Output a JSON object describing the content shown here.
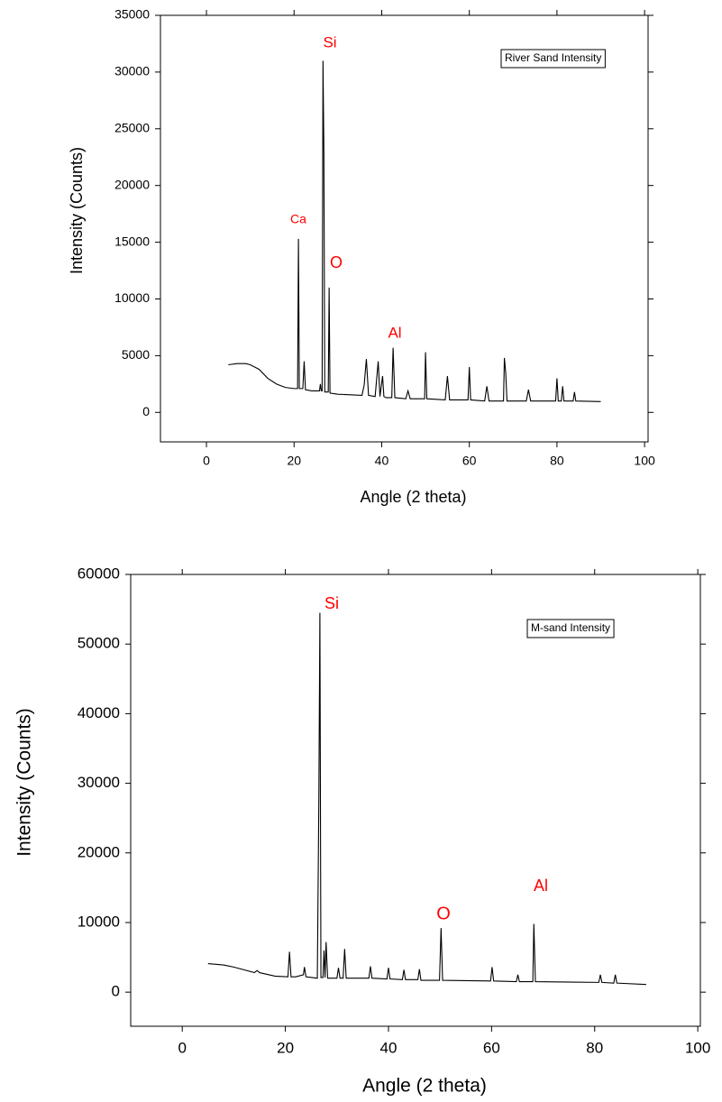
{
  "chart_data": [
    {
      "type": "line",
      "xlabel": "Angle (2 theta)",
      "ylabel": "Intensity (Counts)",
      "xlim": [
        -10.5,
        100.8
      ],
      "ylim": [
        -2600,
        35000
      ],
      "xticks": [
        0,
        20,
        40,
        60,
        80,
        100
      ],
      "yticks": [
        0,
        5000,
        10000,
        15000,
        20000,
        25000,
        30000,
        35000
      ],
      "annotations": [
        "Si",
        "Ca",
        "O",
        "Al"
      ],
      "annotation_color": "#ff0000",
      "series": [
        {
          "name": "River Sand Intensity",
          "color": "#000000",
          "x": [
            5,
            7,
            9,
            10,
            12,
            14,
            16,
            18,
            20,
            20.8,
            21,
            21.2,
            22,
            22.3,
            22.6,
            24,
            25.8,
            26,
            26.2,
            26.4,
            26.6,
            26.8,
            27,
            27.2,
            27.8,
            28,
            28.2,
            30,
            35.5,
            36,
            36.5,
            37,
            38.5,
            39.2,
            39.6,
            40.2,
            40.5,
            41,
            42.3,
            42.6,
            43,
            45.5,
            46,
            46.5,
            49.8,
            50,
            50.3,
            54.5,
            55,
            55.5,
            59.7,
            60,
            60.3,
            63.5,
            64,
            64.5,
            67.8,
            68,
            68.3,
            68.6,
            69,
            73,
            73.5,
            74,
            79.7,
            80,
            80.3,
            81,
            81.3,
            81.6,
            83.7,
            84,
            84.3,
            90
          ],
          "values": [
            4200,
            4300,
            4300,
            4200,
            3800,
            3000,
            2500,
            2200,
            2100,
            2100,
            15300,
            2100,
            2100,
            4500,
            2000,
            1900,
            1900,
            2500,
            1900,
            1900,
            31000,
            23000,
            1800,
            1800,
            1800,
            11000,
            1700,
            1600,
            1500,
            2400,
            4700,
            1500,
            1400,
            4500,
            1400,
            3200,
            1400,
            1300,
            1300,
            5700,
            1300,
            1200,
            1900,
            1200,
            1200,
            5300,
            1200,
            1100,
            3200,
            1100,
            1100,
            4000,
            1100,
            1000,
            2300,
            1000,
            1000,
            4800,
            3500,
            1000,
            1000,
            1000,
            2000,
            1000,
            1000,
            3000,
            1000,
            1000,
            2300,
            1000,
            1000,
            1800,
            1000,
            950
          ]
        }
      ]
    },
    {
      "type": "line",
      "xlabel": "Angle (2 theta)",
      "ylabel": "Intensity (Counts)",
      "xlim": [
        -10,
        100.5
      ],
      "ylim": [
        -4900,
        60000
      ],
      "xticks": [
        0,
        20,
        40,
        60,
        80,
        100
      ],
      "yticks": [
        0,
        10000,
        20000,
        30000,
        40000,
        50000,
        60000
      ],
      "annotations": [
        "Si",
        "O",
        "Al"
      ],
      "annotation_color": "#ff0000",
      "series": [
        {
          "name": "M-sand Intensity",
          "color": "#000000",
          "x": [
            5,
            8,
            10,
            14,
            14.5,
            15,
            18,
            20.5,
            20.8,
            21.1,
            22,
            23.5,
            23.7,
            24,
            26.2,
            26.5,
            26.7,
            26.9,
            27.3,
            27.5,
            27.7,
            27.9,
            28.2,
            30,
            30.3,
            30.6,
            31.2,
            31.5,
            31.8,
            36.2,
            36.5,
            36.8,
            39.7,
            40,
            40.3,
            42.7,
            43,
            43.3,
            45.7,
            46,
            46.3,
            49.9,
            50.2,
            50.5,
            59.8,
            60.1,
            60.4,
            64.8,
            65.1,
            65.4,
            68,
            68.2,
            68.5,
            80.8,
            81.1,
            81.4,
            83.7,
            84,
            84.3,
            90
          ],
          "values": [
            4100,
            3900,
            3600,
            2800,
            3100,
            2800,
            2300,
            2200,
            5800,
            2200,
            2200,
            2500,
            3600,
            2200,
            2000,
            28000,
            54500,
            2100,
            2100,
            6000,
            2100,
            7200,
            2000,
            2000,
            3500,
            2000,
            2000,
            6200,
            2000,
            2000,
            3700,
            2000,
            1900,
            3500,
            1900,
            1800,
            3200,
            1800,
            1800,
            3300,
            1700,
            1700,
            9200,
            1700,
            1600,
            3600,
            1600,
            1500,
            2500,
            1500,
            1500,
            9800,
            1500,
            1400,
            2500,
            1400,
            1300,
            2500,
            1300,
            1100
          ]
        }
      ]
    }
  ]
}
